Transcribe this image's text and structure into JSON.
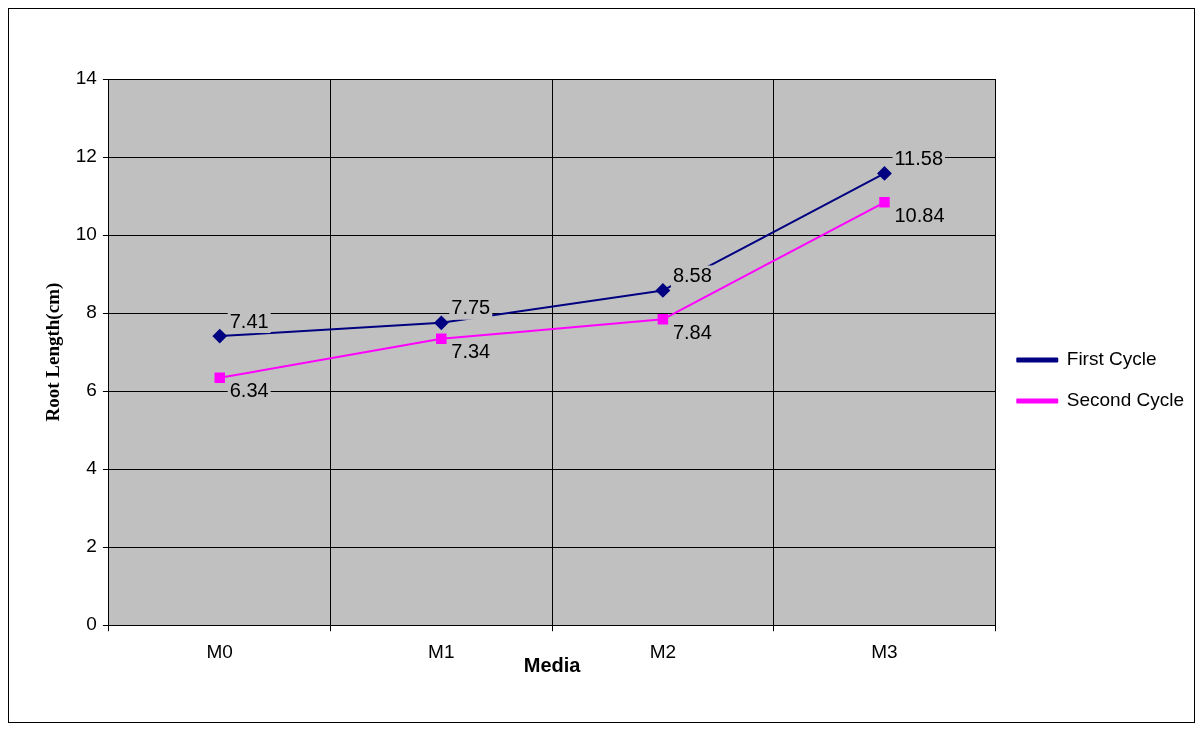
{
  "chart_data": {
    "type": "line",
    "xlabel": "Media",
    "ylabel": "Root Length(cm)",
    "categories": [
      "M0",
      "M1",
      "M2",
      "M3"
    ],
    "series": [
      {
        "name": "First Cycle",
        "color": "#000080",
        "marker": "diamond",
        "values": [
          7.41,
          7.75,
          8.58,
          11.58
        ]
      },
      {
        "name": "Second Cycle",
        "color": "#ff00ff",
        "marker": "square",
        "values": [
          6.34,
          7.34,
          7.84,
          10.84
        ]
      }
    ],
    "ylim": [
      0,
      14
    ],
    "yticks": [
      0,
      2,
      4,
      6,
      8,
      10,
      12,
      14
    ],
    "grid": true,
    "legend": "right",
    "data_labels": true,
    "line_style": "solid"
  }
}
